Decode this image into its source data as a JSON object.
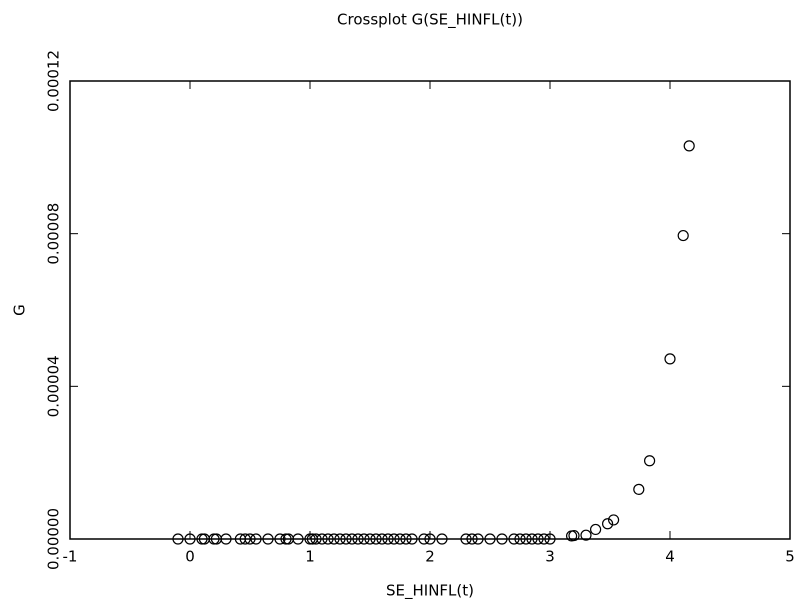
{
  "chart_data": {
    "type": "scatter",
    "title": "Crossplot G(SE_HINFL(t))",
    "x_label": "SE_HINFL(t)",
    "y_label": "G",
    "color": "#000000",
    "xlim": [
      -1,
      5
    ],
    "xticks": [
      -1,
      0,
      1,
      2,
      3,
      4,
      5
    ],
    "ylim": [
      0,
      0.00012
    ],
    "yticks": [
      {
        "value": 0,
        "label": "0.00000"
      },
      {
        "value": 4e-05,
        "label": "0.00004"
      },
      {
        "value": 8e-05,
        "label": "0.00008"
      },
      {
        "value": 0.00012,
        "label": "0.00012"
      }
    ],
    "x": [
      -0.1,
      0.0,
      0.1,
      0.12,
      0.2,
      0.22,
      0.3,
      0.42,
      0.46,
      0.5,
      0.55,
      0.65,
      0.75,
      0.8,
      0.82,
      0.9,
      1.0,
      1.02,
      1.05,
      1.1,
      1.15,
      1.2,
      1.25,
      1.3,
      1.35,
      1.4,
      1.45,
      1.5,
      1.55,
      1.6,
      1.65,
      1.7,
      1.75,
      1.8,
      1.85,
      1.95,
      2.0,
      2.1,
      2.3,
      2.35,
      2.4,
      2.5,
      2.6,
      2.7,
      2.75,
      2.8,
      2.85,
      2.9,
      2.95,
      3.0,
      3.18,
      3.2,
      3.3,
      3.38,
      3.48,
      3.53,
      3.74,
      3.83,
      4.0,
      4.11,
      4.16
    ],
    "values": [
      0,
      0,
      0,
      0,
      0,
      0,
      0,
      0,
      0,
      0,
      0,
      0,
      0,
      0,
      0,
      0,
      0,
      0,
      0,
      0,
      0,
      0,
      0,
      0,
      0,
      0,
      0,
      0,
      0,
      0,
      0,
      0,
      0,
      0,
      0,
      0,
      0,
      0,
      0,
      0,
      0,
      0,
      0,
      0,
      0,
      0,
      0,
      0,
      0,
      0,
      8e-07,
      9e-07,
      1e-06,
      2.5e-06,
      4e-06,
      5e-06,
      1.3e-05,
      2.05e-05,
      4.72e-05,
      7.95e-05,
      0.000103
    ]
  }
}
